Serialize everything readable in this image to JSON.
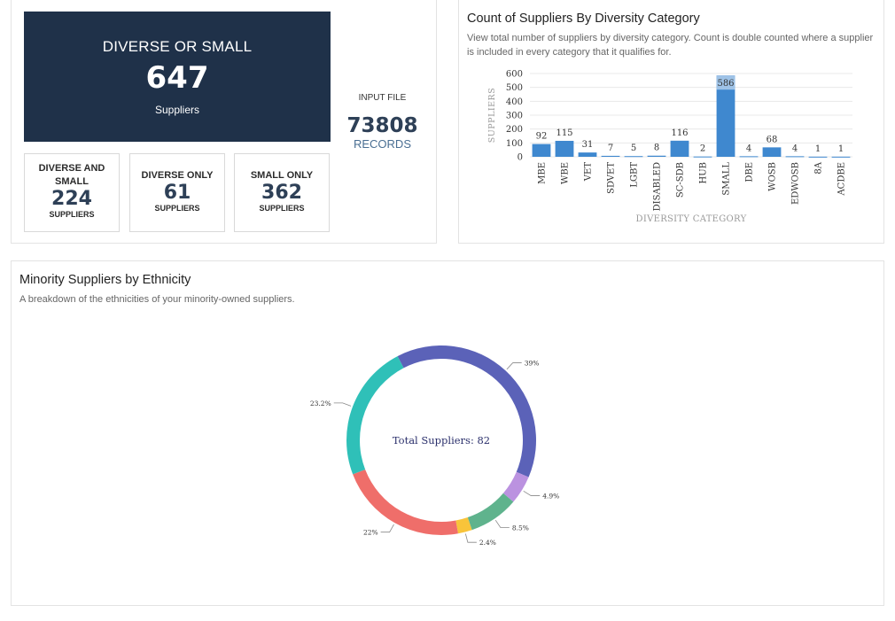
{
  "summary": {
    "hero": {
      "title": "DIVERSE OR SMALL",
      "value": "647",
      "unit": "Suppliers"
    },
    "input_file": {
      "label": "INPUT FILE",
      "value": "73808",
      "unit": "RECORDS"
    },
    "tiles": [
      {
        "title_line1": "DIVERSE AND",
        "title_line2": "SMALL",
        "value": "224",
        "unit": "SUPPLIERS"
      },
      {
        "title_line1": "DIVERSE ONLY",
        "value": "61",
        "unit": "SUPPLIERS"
      },
      {
        "title_line1": "SMALL ONLY",
        "value": "362",
        "unit": "SUPPLIERS"
      }
    ]
  },
  "diversity": {
    "title": "Count of Suppliers By Diversity Category",
    "description": "View total number of suppliers by diversity category. Count is double counted where a supplier is included in every category that it qualifies for."
  },
  "ethnicity": {
    "title": "Minority Suppliers by Ethnicity",
    "description": "A breakdown of the ethnicities of your minority-owned suppliers."
  },
  "chart_data": [
    {
      "type": "bar",
      "xlabel": "DIVERSITY CATEGORY",
      "ylabel": "SUPPLIERS",
      "categories": [
        "MBE",
        "WBE",
        "VET",
        "SDVET",
        "LGBT",
        "DISABLED",
        "SC-SDB",
        "HUB",
        "SMALL",
        "DBE",
        "WOSB",
        "EDWOSB",
        "8A",
        "ACDBE"
      ],
      "values": [
        92,
        115,
        31,
        7,
        5,
        8,
        116,
        2,
        586,
        4,
        68,
        4,
        1,
        1
      ],
      "yticks": [
        0,
        100,
        200,
        300,
        400,
        500,
        600
      ],
      "ylim": [
        0,
        600
      ],
      "grid": true,
      "highlighted_category": "SMALL",
      "bar_color": "#3f88cf",
      "highlight_color": "#9fc3e7"
    },
    {
      "type": "donut",
      "center_label": "Total Suppliers: 82",
      "slices": [
        {
          "value": 39,
          "label": "39%",
          "color": "#5b62b8"
        },
        {
          "value": 4.9,
          "label": "4.9%",
          "color": "#bb92e0"
        },
        {
          "value": 8.5,
          "label": "8.5%",
          "color": "#5fb38d"
        },
        {
          "value": 2.4,
          "label": "2.4%",
          "color": "#f8c43a"
        },
        {
          "value": 22,
          "label": "22%",
          "color": "#ef6e6a"
        },
        {
          "value": 23.2,
          "label": "23.2%",
          "color": "#2fc0b8"
        }
      ]
    }
  ]
}
